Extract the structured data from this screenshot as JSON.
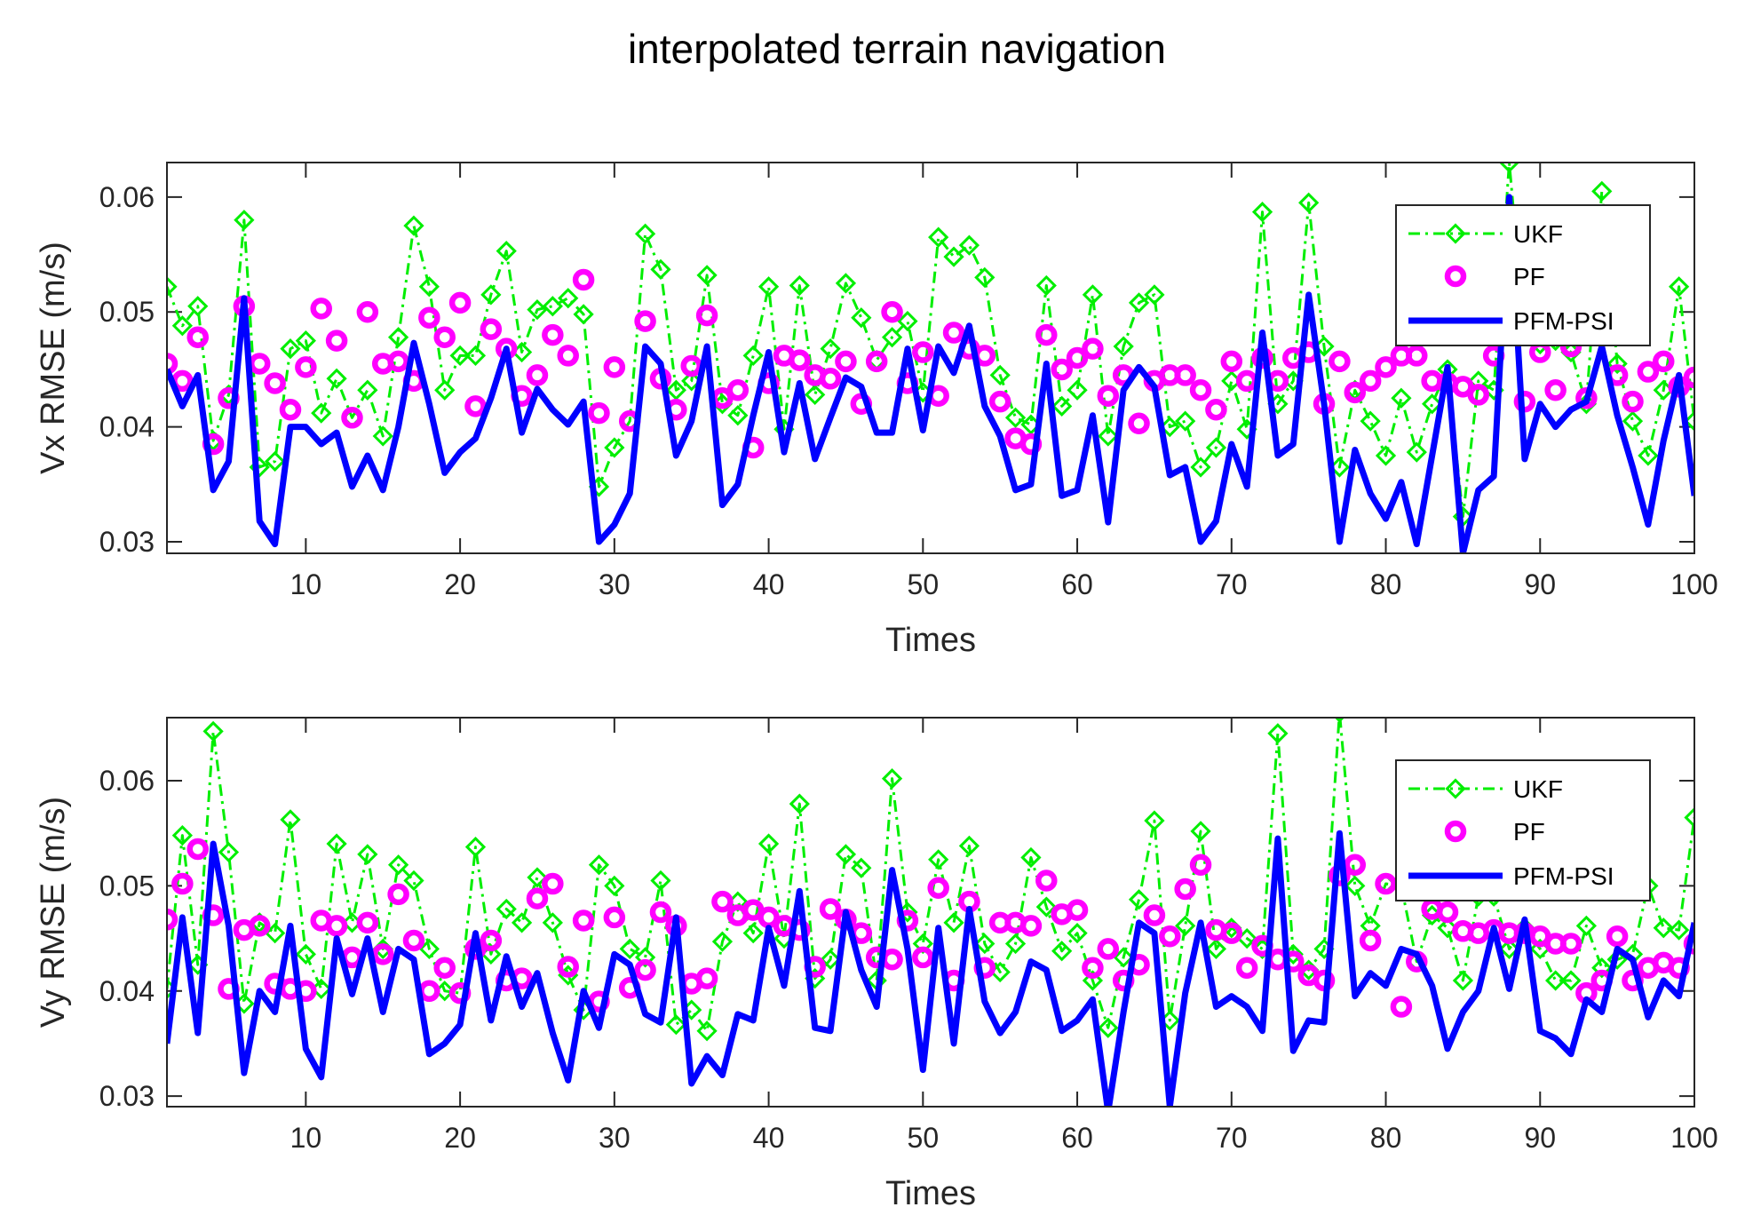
{
  "figure_title": "interpolated terrain navigation",
  "colors": {
    "ukf": "#00ee00",
    "pf": "#ff00ff",
    "pfm": "#0000ff",
    "axis": "#262626"
  },
  "chart_data": [
    {
      "type": "line",
      "title": "interpolated terrain navigation",
      "xlabel": "Times",
      "ylabel": "Vx  RMSE (m/s)",
      "xlim": [
        1,
        100
      ],
      "ylim": [
        0.029,
        0.063
      ],
      "xticks": [
        10,
        20,
        30,
        40,
        50,
        60,
        70,
        80,
        90,
        100
      ],
      "yticks": [
        0.03,
        0.04,
        0.05,
        0.06
      ],
      "ytick_labels": [
        "0.03",
        "0.04",
        "0.05",
        "0.06"
      ],
      "legend": [
        "UKF",
        "PF",
        "PFM-PSI"
      ],
      "legend_position": "top-right",
      "series": [
        {
          "name": "UKF",
          "style": "dash-dot with diamond markers",
          "values": [
            0.0522,
            0.0488,
            0.0505,
            0.0388,
            0.0428,
            0.058,
            0.0365,
            0.037,
            0.0468,
            0.0475,
            0.0412,
            0.0442,
            0.0408,
            0.0432,
            0.0392,
            0.0478,
            0.0575,
            0.0522,
            0.0432,
            0.0462,
            0.0462,
            0.0515,
            0.0553,
            0.0465,
            0.0502,
            0.0505,
            0.0512,
            0.0498,
            0.0348,
            0.0382,
            0.0405,
            0.0568,
            0.0537,
            0.0432,
            0.044,
            0.0532,
            0.042,
            0.041,
            0.0462,
            0.0522,
            0.0398,
            0.0523,
            0.0428,
            0.0468,
            0.0525,
            0.0495,
            0.0458,
            0.0478,
            0.0492,
            0.043,
            0.0565,
            0.0548,
            0.0558,
            0.053,
            0.0445,
            0.0408,
            0.0402,
            0.0523,
            0.0418,
            0.0432,
            0.0515,
            0.0392,
            0.047,
            0.0508,
            0.0515,
            0.04,
            0.0405,
            0.0365,
            0.0382,
            0.044,
            0.0398,
            0.0587,
            0.042,
            0.044,
            0.0595,
            0.047,
            0.0365,
            0.0432,
            0.0405,
            0.0375,
            0.0425,
            0.0378,
            0.042,
            0.045,
            0.0322,
            0.044,
            0.0432,
            0.063,
            0.048,
            0.0472,
            0.0475,
            0.0465,
            0.042,
            0.0605,
            0.0455,
            0.0405,
            0.0375,
            0.0432,
            0.0522,
            0.0405
          ]
        },
        {
          "name": "PF",
          "style": "circle markers",
          "values": [
            0.0455,
            0.044,
            0.0478,
            0.0385,
            0.0425,
            0.0505,
            0.0455,
            0.0438,
            0.0415,
            0.0452,
            0.0503,
            0.0475,
            0.0408,
            0.05,
            0.0455,
            0.0457,
            0.044,
            0.0495,
            0.0478,
            0.0508,
            0.0418,
            0.0485,
            0.0468,
            0.0427,
            0.0445,
            0.048,
            0.0462,
            0.0528,
            0.0412,
            0.0452,
            0.0405,
            0.0492,
            0.0442,
            0.0415,
            0.0453,
            0.0497,
            0.0425,
            0.0432,
            0.0382,
            0.0438,
            0.0462,
            0.0458,
            0.0445,
            0.0442,
            0.0457,
            0.042,
            0.0457,
            0.05,
            0.0438,
            0.0465,
            0.0427,
            0.0482,
            0.0468,
            0.0462,
            0.0422,
            0.039,
            0.0385,
            0.048,
            0.045,
            0.046,
            0.0468,
            0.0427,
            0.0445,
            0.0403,
            0.044,
            0.0445,
            0.0445,
            0.0432,
            0.0415,
            0.0457,
            0.044,
            0.046,
            0.044,
            0.046,
            0.0465,
            0.042,
            0.0457,
            0.043,
            0.044,
            0.0452,
            0.0462,
            0.0462,
            0.044,
            0.0438,
            0.0435,
            0.0428,
            0.0462,
            0.0495,
            0.0422,
            0.0465,
            0.0432,
            0.047,
            0.0425,
            0.049,
            0.0445,
            0.0422,
            0.0448,
            0.0457,
            0.0435,
            0.0443
          ]
        },
        {
          "name": "PFM-PSI",
          "style": "thick solid line",
          "values": [
            0.045,
            0.0418,
            0.0445,
            0.0345,
            0.037,
            0.0512,
            0.0318,
            0.0298,
            0.04,
            0.04,
            0.0385,
            0.0395,
            0.0348,
            0.0375,
            0.0345,
            0.04,
            0.0473,
            0.042,
            0.036,
            0.0378,
            0.039,
            0.0425,
            0.0468,
            0.0395,
            0.0433,
            0.0415,
            0.0402,
            0.0422,
            0.03,
            0.0315,
            0.0342,
            0.047,
            0.0455,
            0.0375,
            0.0405,
            0.047,
            0.0332,
            0.035,
            0.041,
            0.0465,
            0.0378,
            0.0438,
            0.0372,
            0.0408,
            0.0443,
            0.0435,
            0.0395,
            0.0395,
            0.0468,
            0.0397,
            0.047,
            0.0447,
            0.0488,
            0.0418,
            0.0392,
            0.0345,
            0.035,
            0.0455,
            0.034,
            0.0345,
            0.041,
            0.0317,
            0.0432,
            0.0452,
            0.0435,
            0.0358,
            0.0365,
            0.03,
            0.0318,
            0.0385,
            0.0348,
            0.0482,
            0.0375,
            0.0385,
            0.0515,
            0.042,
            0.03,
            0.038,
            0.0342,
            0.032,
            0.0352,
            0.0298,
            0.0375,
            0.0452,
            0.029,
            0.0345,
            0.0357,
            0.06,
            0.0372,
            0.042,
            0.04,
            0.0415,
            0.0422,
            0.047,
            0.041,
            0.0365,
            0.0315,
            0.0388,
            0.0445,
            0.034
          ]
        }
      ]
    },
    {
      "type": "line",
      "xlabel": "Times",
      "ylabel": "Vy  RMSE (m/s)",
      "xlim": [
        1,
        100
      ],
      "ylim": [
        0.029,
        0.066
      ],
      "xticks": [
        10,
        20,
        30,
        40,
        50,
        60,
        70,
        80,
        90,
        100
      ],
      "yticks": [
        0.03,
        0.04,
        0.05,
        0.06
      ],
      "ytick_labels": [
        "0.03",
        "0.04",
        "0.05",
        "0.06"
      ],
      "legend": [
        "UKF",
        "PF",
        "PFM-PSI"
      ],
      "legend_position": "top-right",
      "series": [
        {
          "name": "UKF",
          "style": "dash-dot with diamond markers",
          "values": [
            0.0402,
            0.0548,
            0.0425,
            0.0647,
            0.0532,
            0.0388,
            0.0465,
            0.0455,
            0.0563,
            0.0435,
            0.0402,
            0.054,
            0.0465,
            0.053,
            0.044,
            0.052,
            0.0505,
            0.044,
            0.04,
            0.0398,
            0.0537,
            0.0435,
            0.0478,
            0.0465,
            0.0508,
            0.0465,
            0.0415,
            0.0382,
            0.052,
            0.05,
            0.044,
            0.0432,
            0.0505,
            0.0368,
            0.0382,
            0.0362,
            0.0447,
            0.0485,
            0.0455,
            0.054,
            0.045,
            0.0578,
            0.0412,
            0.043,
            0.053,
            0.0517,
            0.041,
            0.0602,
            0.0475,
            0.0445,
            0.0525,
            0.0465,
            0.0538,
            0.0445,
            0.0418,
            0.0445,
            0.0527,
            0.048,
            0.0438,
            0.0455,
            0.041,
            0.0365,
            0.0432,
            0.0487,
            0.0562,
            0.0372,
            0.0462,
            0.0552,
            0.044,
            0.046,
            0.045,
            0.044,
            0.0645,
            0.0435,
            0.042,
            0.044,
            0.0665,
            0.05,
            0.0462,
            0.0502,
            0.05,
            0.0428,
            0.0472,
            0.046,
            0.041,
            0.049,
            0.049,
            0.044,
            0.046,
            0.044,
            0.041,
            0.041,
            0.0462,
            0.0422,
            0.043,
            0.0435,
            0.05,
            0.046,
            0.0458,
            0.0565
          ]
        },
        {
          "name": "PF",
          "style": "circle markers",
          "values": [
            0.0468,
            0.0502,
            0.0535,
            0.0472,
            0.0402,
            0.0458,
            0.0462,
            0.0407,
            0.0402,
            0.04,
            0.0467,
            0.0462,
            0.0432,
            0.0465,
            0.0435,
            0.0492,
            0.0448,
            0.04,
            0.0422,
            0.0398,
            0.044,
            0.0448,
            0.041,
            0.0412,
            0.0488,
            0.0502,
            0.0423,
            0.0467,
            0.039,
            0.047,
            0.0403,
            0.042,
            0.0475,
            0.0462,
            0.0407,
            0.0412,
            0.0485,
            0.0472,
            0.0477,
            0.047,
            0.0462,
            0.0458,
            0.0423,
            0.0478,
            0.0468,
            0.0455,
            0.0432,
            0.043,
            0.0467,
            0.0432,
            0.0498,
            0.041,
            0.0485,
            0.0422,
            0.0465,
            0.0465,
            0.0462,
            0.0505,
            0.0473,
            0.0477,
            0.0422,
            0.044,
            0.041,
            0.0425,
            0.0472,
            0.0452,
            0.0497,
            0.052,
            0.0458,
            0.0455,
            0.0422,
            0.0443,
            0.043,
            0.0428,
            0.0415,
            0.041,
            0.051,
            0.052,
            0.0448,
            0.0502,
            0.0385,
            0.0428,
            0.0478,
            0.0475,
            0.0457,
            0.0455,
            0.0458,
            0.0455,
            0.0455,
            0.0452,
            0.0445,
            0.0445,
            0.0398,
            0.041,
            0.0452,
            0.041,
            0.0422,
            0.0427,
            0.0422,
            0.0445
          ]
        },
        {
          "name": "PFM-PSI",
          "style": "thick solid line",
          "values": [
            0.035,
            0.047,
            0.036,
            0.054,
            0.0462,
            0.0322,
            0.04,
            0.038,
            0.0462,
            0.0345,
            0.0318,
            0.045,
            0.0397,
            0.045,
            0.038,
            0.044,
            0.043,
            0.034,
            0.035,
            0.0368,
            0.0455,
            0.0372,
            0.0433,
            0.0385,
            0.0417,
            0.036,
            0.0315,
            0.04,
            0.0365,
            0.0435,
            0.0425,
            0.0378,
            0.037,
            0.047,
            0.0312,
            0.0338,
            0.032,
            0.0378,
            0.0372,
            0.046,
            0.0405,
            0.0495,
            0.0365,
            0.0362,
            0.0475,
            0.042,
            0.0385,
            0.0515,
            0.044,
            0.0325,
            0.046,
            0.035,
            0.0478,
            0.039,
            0.036,
            0.038,
            0.0428,
            0.042,
            0.0362,
            0.0372,
            0.0392,
            0.0285,
            0.038,
            0.0465,
            0.0455,
            0.029,
            0.0398,
            0.0465,
            0.0385,
            0.0395,
            0.0385,
            0.0362,
            0.0545,
            0.0343,
            0.0372,
            0.037,
            0.055,
            0.0395,
            0.0417,
            0.0405,
            0.044,
            0.0435,
            0.0405,
            0.0345,
            0.038,
            0.04,
            0.046,
            0.0402,
            0.0468,
            0.0362,
            0.0355,
            0.034,
            0.0392,
            0.038,
            0.044,
            0.043,
            0.0375,
            0.041,
            0.0395,
            0.0465
          ]
        }
      ]
    }
  ]
}
